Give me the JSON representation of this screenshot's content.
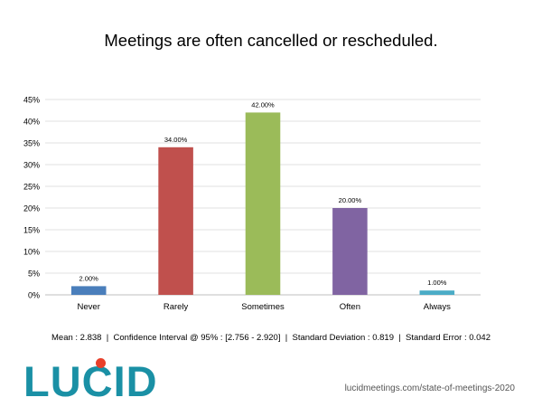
{
  "chart_data": {
    "type": "bar",
    "title": "Meetings are often cancelled or rescheduled.",
    "categories": [
      "Never",
      "Rarely",
      "Sometimes",
      "Often",
      "Always"
    ],
    "values": [
      2,
      34,
      42,
      20,
      1
    ],
    "data_labels": [
      "2.00%",
      "34.00%",
      "42.00%",
      "20.00%",
      "1.00%"
    ],
    "colors": [
      "#4a7ebb",
      "#c0504d",
      "#9bbb59",
      "#8064a2",
      "#4bacc6"
    ],
    "ylim": [
      0,
      45
    ],
    "yticks": [
      "0%",
      "5%",
      "10%",
      "15%",
      "20%",
      "25%",
      "30%",
      "35%",
      "40%",
      "45%"
    ],
    "grid": true,
    "xlabel": "",
    "ylabel": ""
  },
  "stats_line": "Mean : 2.838  |  Confidence Interval @ 95% : [2.756 - 2.920]  |  Standard Deviation : 0.819  |  Standard Error : 0.042",
  "logo_text": "LUCID",
  "footer_url": "lucidmeetings.com/state-of-meetings-2020"
}
